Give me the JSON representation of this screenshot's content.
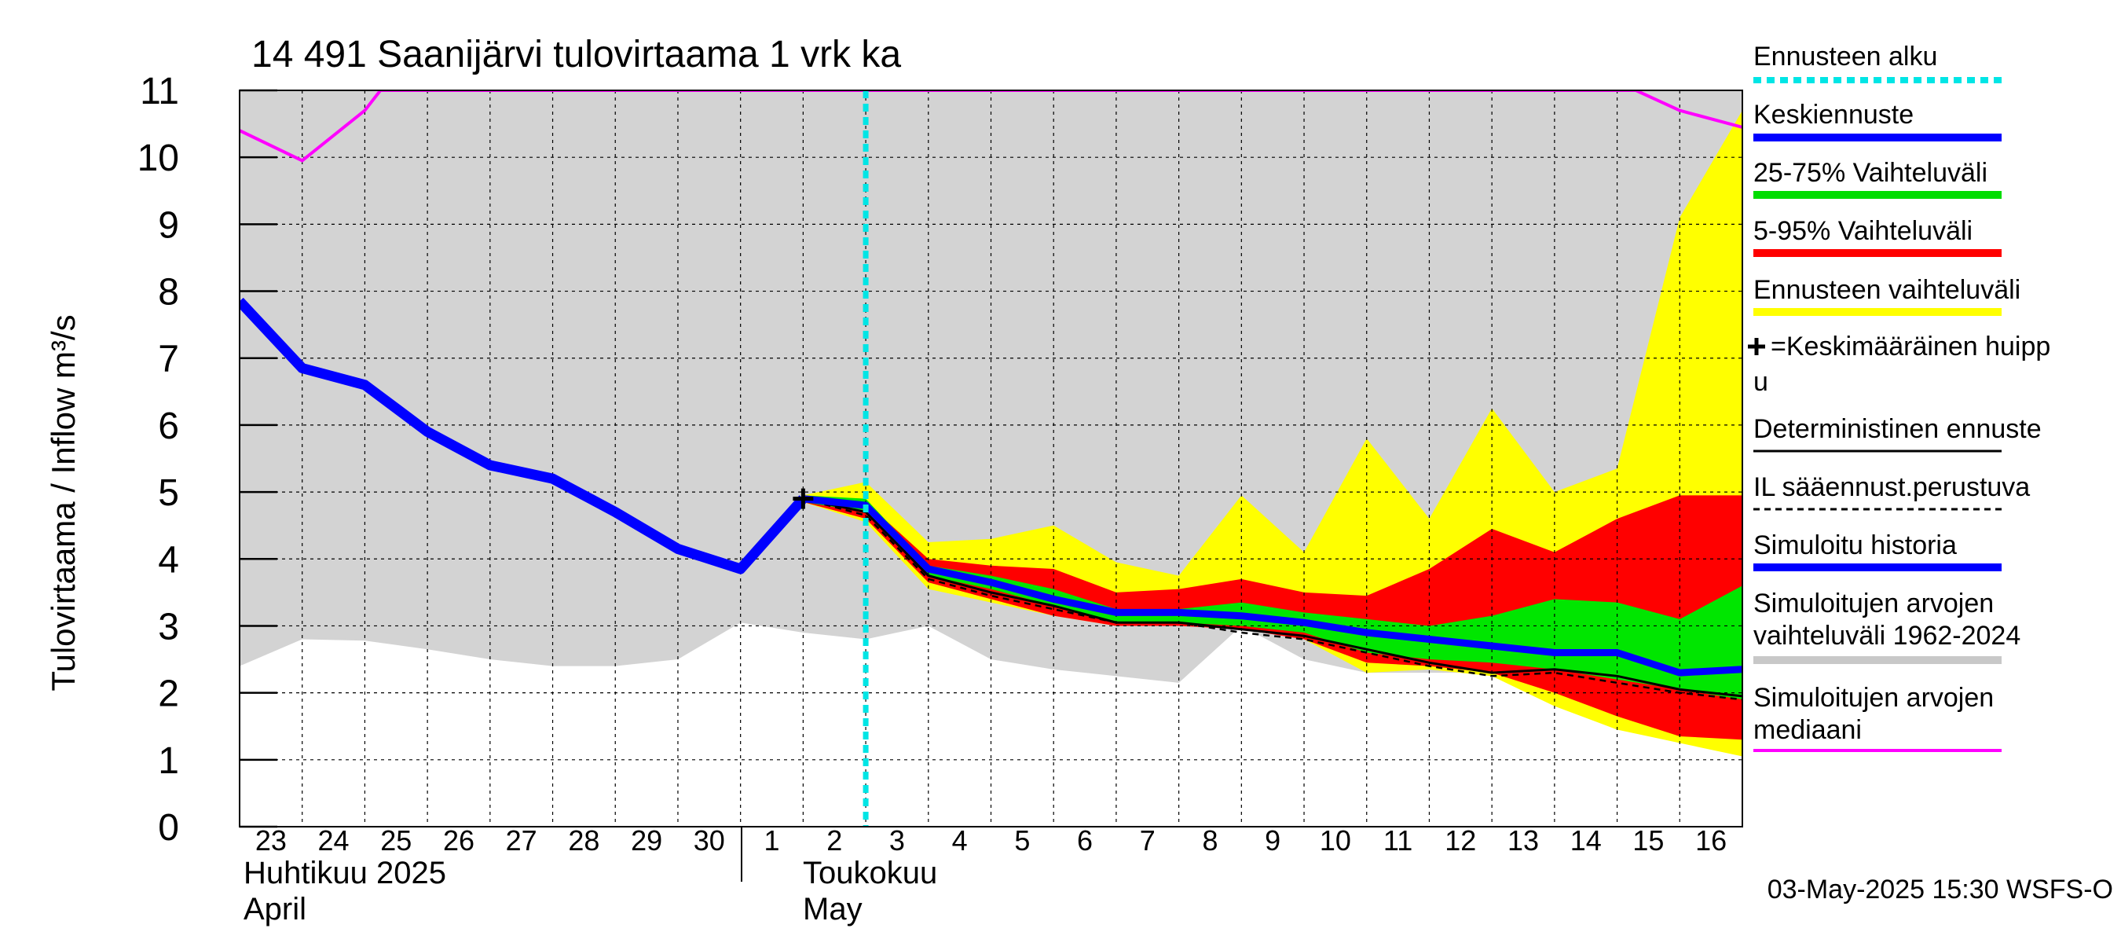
{
  "chart_data": {
    "type": "area",
    "title": "14 491 Saanijärvi tulovirtaama 1 vrk ka",
    "ylabel": "Tulovirtaama / Inflow   m³/s",
    "ylim": [
      0,
      11
    ],
    "yticks": [
      "0",
      "1",
      "2",
      "3",
      "4",
      "5",
      "6",
      "7",
      "8",
      "9",
      "10",
      "11"
    ],
    "x_day_labels": [
      "23",
      "24",
      "25",
      "26",
      "27",
      "28",
      "29",
      "30",
      "1",
      "2",
      "3",
      "4",
      "5",
      "6",
      "7",
      "8",
      "9",
      "10",
      "11",
      "12",
      "13",
      "14",
      "15",
      "16"
    ],
    "month_labels": {
      "april_fi": "Huhtikuu  2025",
      "april_en": "April",
      "may_fi": "Toukokuu",
      "may_en": "May"
    },
    "x_range_days": [
      0,
      24
    ],
    "forecast_start_day": 10,
    "footer": "03-May-2025 15:30 WSFS-O",
    "legend": [
      {
        "label": "Ennusteen alku",
        "color": "#00e5e5",
        "style": "dotted"
      },
      {
        "label": "Keskiennuste",
        "color": "#0000ff",
        "style": "solid"
      },
      {
        "label": "25-75% Vaihteluväli",
        "color": "#00dd00",
        "style": "solid"
      },
      {
        "label": "5-95% Vaihteluväli",
        "color": "#ff0000",
        "style": "solid"
      },
      {
        "label": "Ennusteen vaihteluväli",
        "color": "#ffff00",
        "style": "solid"
      },
      {
        "label": "=Keskimääräinen huipp",
        "label2": "u",
        "color": "#000000",
        "style": "marker"
      },
      {
        "label": "Deterministinen ennuste",
        "color": "#000000",
        "style": "thin"
      },
      {
        "label": "IL sääennust.perustuva",
        "color": "#000000",
        "style": "dashed"
      },
      {
        "label": "Simuloitu historia",
        "color": "#0000ff",
        "style": "solid"
      },
      {
        "label": "Simuloitujen arvojen",
        "label2": "vaihteluväli 1962-2024",
        "color": "#c8c8c8",
        "style": "solid"
      },
      {
        "label": "Simuloitujen arvojen",
        "label2": "mediaani",
        "color": "#ff00ff",
        "style": "solid"
      }
    ],
    "series": {
      "hist_range_x": [
        0,
        1,
        2,
        3,
        4,
        5,
        6,
        7,
        8,
        9,
        10,
        11,
        12,
        13,
        14,
        15,
        16,
        17,
        18,
        19,
        20,
        21,
        22,
        23,
        24
      ],
      "hist_range_low": [
        2.4,
        2.8,
        2.78,
        2.65,
        2.5,
        2.4,
        2.4,
        2.5,
        3.05,
        2.9,
        2.8,
        3.0,
        2.5,
        2.35,
        2.25,
        2.15,
        3.0,
        2.5,
        2.3,
        2.3,
        2.3,
        2.1,
        1.85,
        1.6,
        1.5
      ],
      "hist_range_high": [
        11,
        11,
        11,
        11,
        11,
        11,
        11,
        11,
        11,
        11,
        11,
        11,
        11,
        11,
        11,
        11,
        11,
        11,
        11,
        11,
        11,
        11,
        11,
        11,
        11
      ],
      "median_x": [
        0,
        1,
        2,
        2.25,
        22.3,
        23,
        24
      ],
      "median_y": [
        10.4,
        9.95,
        10.7,
        11.0,
        11.0,
        10.7,
        10.45
      ],
      "simulated_history_x": [
        0,
        1,
        2,
        3,
        4,
        5,
        6,
        7,
        8,
        9
      ],
      "simulated_history_y": [
        7.85,
        6.85,
        6.6,
        5.9,
        5.4,
        5.2,
        4.7,
        4.15,
        3.85,
        4.9
      ],
      "forecast_x": [
        9,
        10,
        11,
        12,
        13,
        14,
        15,
        16,
        17,
        18,
        19,
        20,
        21,
        22,
        23,
        24
      ],
      "forecast_range_low": [
        4.85,
        4.55,
        3.55,
        3.35,
        3.15,
        3.0,
        3.0,
        3.05,
        2.8,
        2.3,
        2.35,
        2.25,
        1.8,
        1.45,
        1.25,
        1.05
      ],
      "forecast_range_high": [
        4.95,
        5.15,
        4.25,
        4.3,
        4.5,
        3.95,
        3.75,
        4.95,
        4.1,
        5.8,
        4.6,
        6.25,
        5.0,
        5.35,
        9.1,
        10.7
      ],
      "p5_95_low": [
        4.85,
        4.6,
        3.65,
        3.4,
        3.15,
        3.0,
        3.0,
        2.95,
        2.8,
        2.45,
        2.4,
        2.3,
        2.0,
        1.65,
        1.35,
        1.3
      ],
      "p5_95_high": [
        4.95,
        4.85,
        4.0,
        3.9,
        3.85,
        3.5,
        3.55,
        3.7,
        3.5,
        3.45,
        3.85,
        4.45,
        4.1,
        4.6,
        4.95,
        4.95
      ],
      "p25_75_low": [
        4.85,
        4.7,
        3.75,
        3.55,
        3.3,
        3.05,
        3.05,
        3.0,
        2.9,
        2.6,
        2.5,
        2.45,
        2.35,
        2.2,
        2.05,
        1.9
      ],
      "p25_75_high": [
        4.95,
        4.9,
        3.9,
        3.75,
        3.55,
        3.25,
        3.25,
        3.35,
        3.2,
        3.1,
        3.0,
        3.15,
        3.4,
        3.35,
        3.1,
        3.6
      ],
      "mean_forecast_y": [
        4.9,
        4.8,
        3.85,
        3.65,
        3.4,
        3.2,
        3.2,
        3.15,
        3.05,
        2.9,
        2.8,
        2.7,
        2.6,
        2.6,
        2.3,
        2.35
      ],
      "deterministic_y": [
        4.9,
        4.7,
        3.75,
        3.5,
        3.3,
        3.05,
        3.05,
        2.95,
        2.85,
        2.65,
        2.45,
        2.3,
        2.35,
        2.25,
        2.05,
        1.95
      ],
      "il_weather_y": [
        4.9,
        4.65,
        3.7,
        3.45,
        3.25,
        3.05,
        3.05,
        2.9,
        2.8,
        2.6,
        2.4,
        2.25,
        2.3,
        2.15,
        2.0,
        1.9
      ],
      "peak_marker": {
        "x": 9,
        "y": 4.9
      }
    }
  }
}
